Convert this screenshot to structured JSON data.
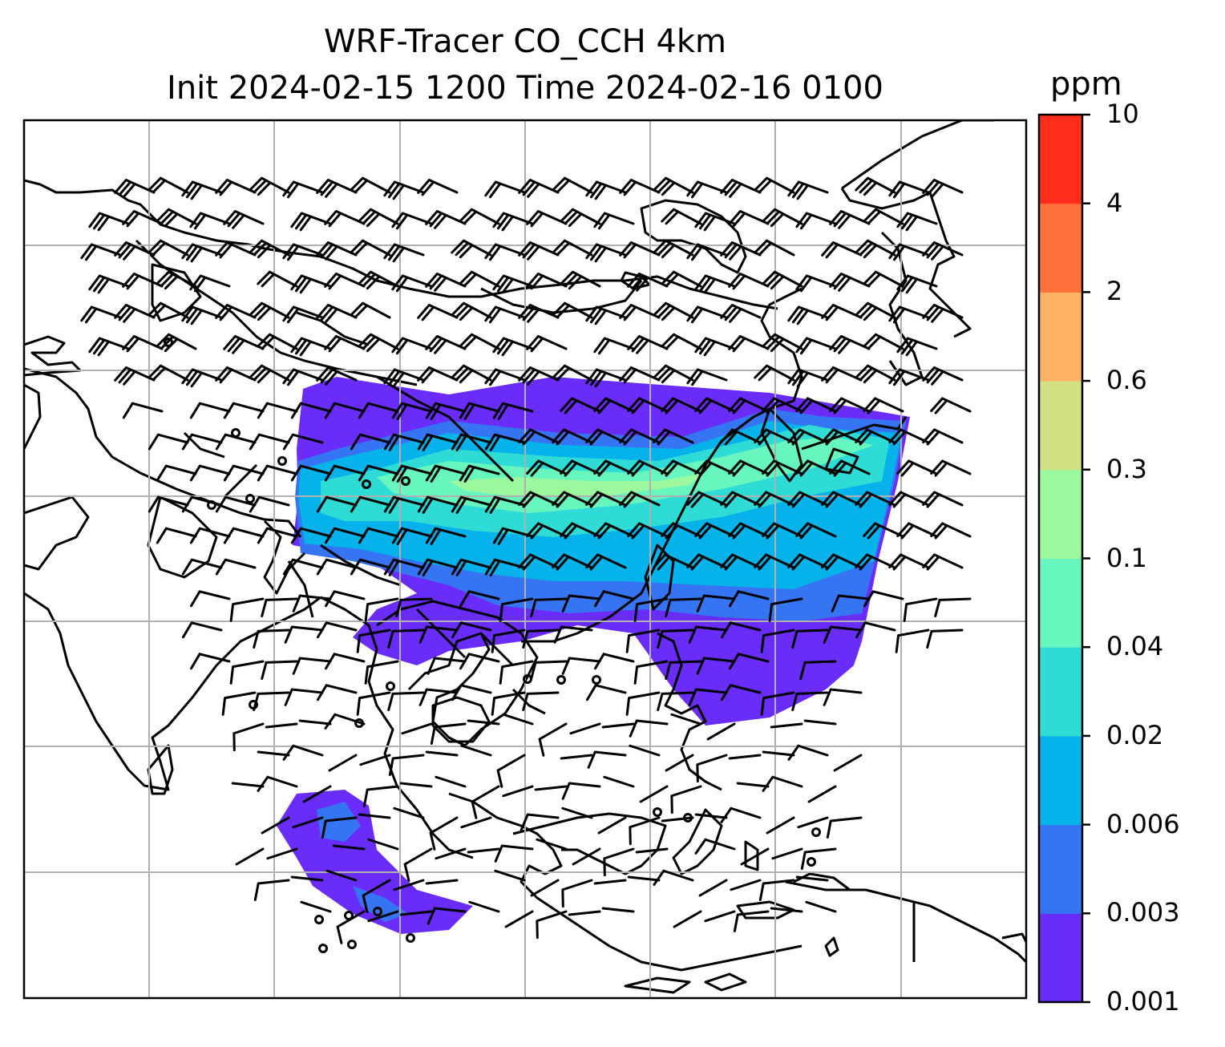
{
  "title": {
    "line1": "WRF-Tracer CO_CCH 4km",
    "line2": "Init 2024-02-15 1200 Time 2024-02-16 0100"
  },
  "colorbar": {
    "unit": "ppm",
    "levels": [
      "0.001",
      "0.003",
      "0.006",
      "0.02",
      "0.04",
      "0.1",
      "0.3",
      "0.6",
      "2",
      "4",
      "10"
    ],
    "colors": [
      "#6a2cf8",
      "#3575f3",
      "#06b2ea",
      "#2fdcd5",
      "#66f6be",
      "#9bf89d",
      "#d2e084",
      "#fdb363",
      "#ff703b",
      "#ff2d19"
    ]
  },
  "map": {
    "grid": "on",
    "tracer_colors": [
      "#6a2cf8",
      "#3575f3",
      "#06b2ea",
      "#2fdcd5",
      "#66f6be",
      "#9bf89d"
    ],
    "wind_barb_color": "#000000",
    "coastline_color": "#000000"
  }
}
